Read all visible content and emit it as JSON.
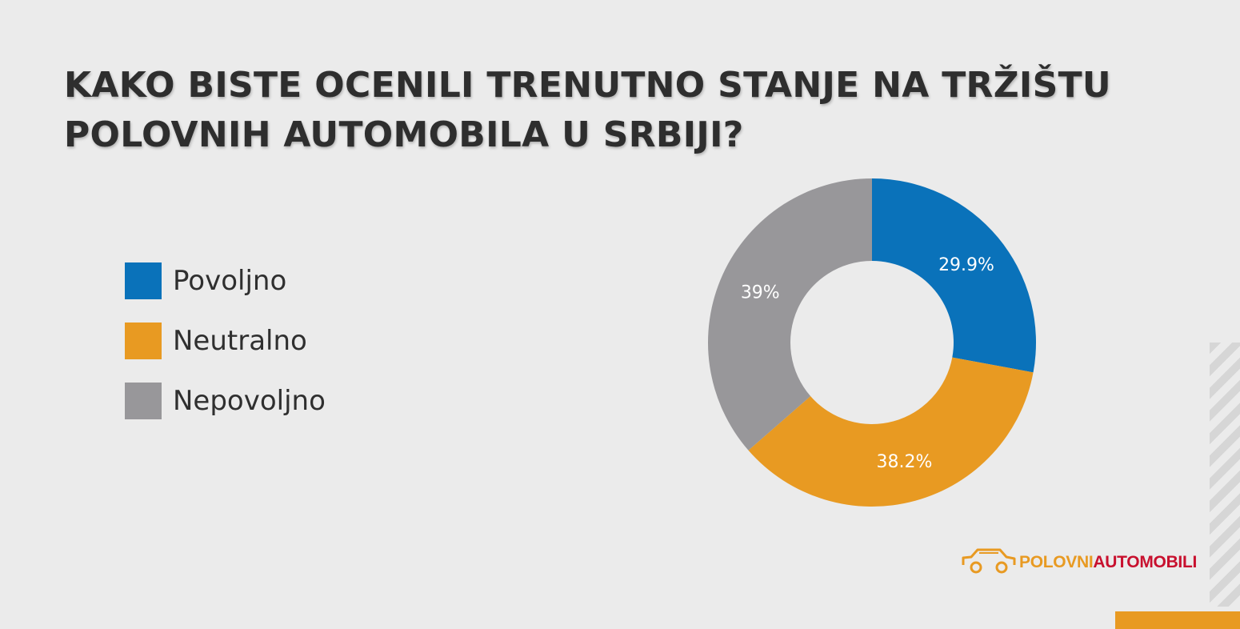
{
  "title_lines": [
    "KAKO BISTE OCENILI TRENUTNO STANJE NA TRŽIŠTU",
    "POLOVNIH AUTOMOBILA U SRBIJI?"
  ],
  "chart_data": {
    "type": "pie",
    "variant": "donut",
    "title": "KAKO BISTE OCENILI TRENUTNO STANJE NA TRŽIŠTU POLOVNIH AUTOMOBILA U SRBIJI?",
    "legend_position": "left",
    "categories": [
      "Povoljno",
      "Neutralno",
      "Nepovoljno"
    ],
    "values": [
      29.9,
      38.2,
      39
    ],
    "value_labels": [
      "29.9%",
      "38.2%",
      "39%"
    ],
    "colors": [
      "#0a72ba",
      "#e89a22",
      "#98979a"
    ]
  },
  "legend": {
    "items": [
      {
        "label": "Povoljno",
        "color": "#0a72ba"
      },
      {
        "label": "Neutralno",
        "color": "#e89a22"
      },
      {
        "label": "Nepovoljno",
        "color": "#98979a"
      }
    ]
  },
  "brand": {
    "part1": "POLOVNI",
    "part2": "AUTOMOBILI",
    "colors": {
      "part1": "#e89a22",
      "part2": "#c8102e"
    },
    "icon": "car-outline-icon"
  }
}
